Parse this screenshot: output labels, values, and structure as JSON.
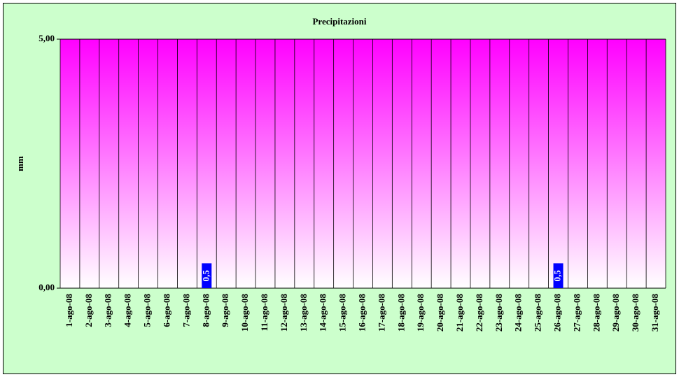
{
  "chart_data": {
    "type": "bar",
    "title": "Precipitazioni",
    "y_label": "mm",
    "categories": [
      "1-ago-08",
      "2-ago-08",
      "3-ago-08",
      "4-ago-08",
      "5-ago-08",
      "6-ago-08",
      "7-ago-08",
      "8-ago-08",
      "9-ago-08",
      "10-ago-08",
      "11-ago-08",
      "12-ago-08",
      "13-ago-08",
      "14-ago-08",
      "15-ago-08",
      "16-ago-08",
      "17-ago-08",
      "18-ago-08",
      "19-ago-08",
      "20-ago-08",
      "21-ago-08",
      "22-ago-08",
      "23-ago-08",
      "24-ago-08",
      "25-ago-08",
      "26-ago-08",
      "27-ago-08",
      "28-ago-08",
      "29-ago-08",
      "30-ago-08",
      "31-ago-08"
    ],
    "values": [
      0,
      0,
      0,
      0,
      0,
      0,
      0,
      0.5,
      0,
      0,
      0,
      0,
      0,
      0,
      0,
      0,
      0,
      0,
      0,
      0,
      0,
      0,
      0,
      0,
      0,
      0.5,
      0,
      0,
      0,
      0,
      0
    ],
    "value_labels": [
      null,
      null,
      null,
      null,
      null,
      null,
      null,
      "0,5",
      null,
      null,
      null,
      null,
      null,
      null,
      null,
      null,
      null,
      null,
      null,
      null,
      null,
      null,
      null,
      null,
      null,
      "0,5",
      null,
      null,
      null,
      null,
      null
    ],
    "color": "#0000ff",
    "ylim": [
      0,
      5
    ],
    "yticks": [
      {
        "value": 0,
        "label": "0,00"
      },
      {
        "value": 5,
        "label": "5,00"
      }
    ]
  }
}
